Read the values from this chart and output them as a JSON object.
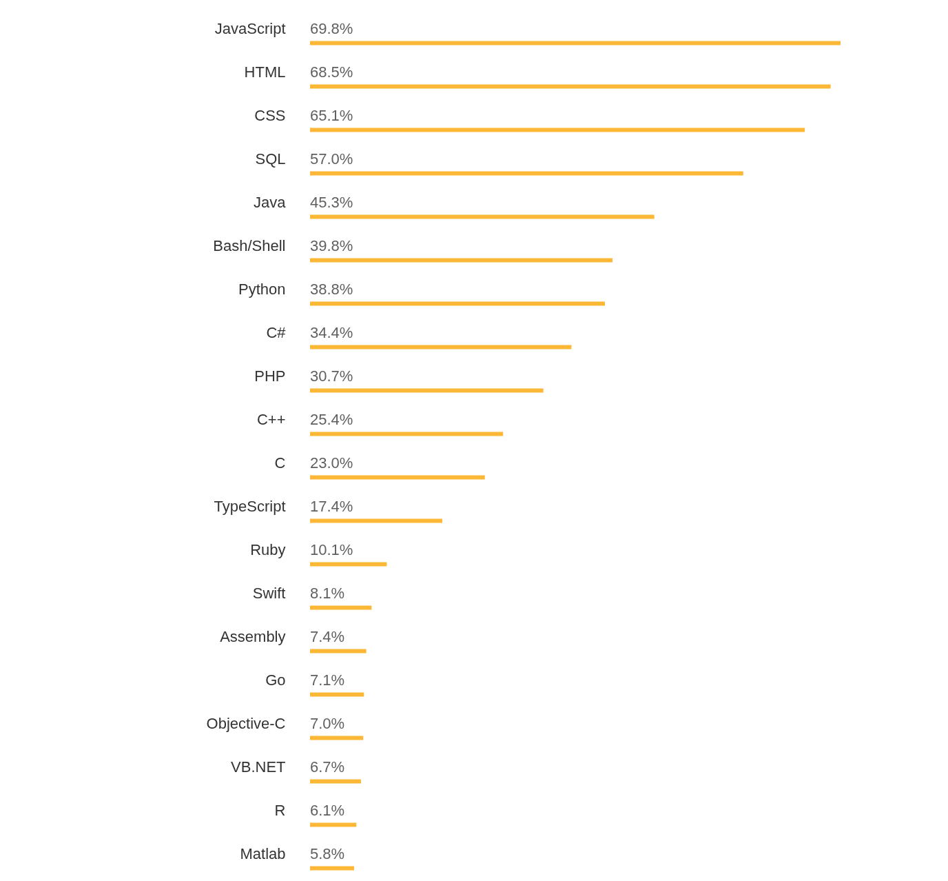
{
  "chart_data": {
    "type": "bar",
    "orientation": "horizontal",
    "color": "#fcb737",
    "categories": [
      "JavaScript",
      "HTML",
      "CSS",
      "SQL",
      "Java",
      "Bash/Shell",
      "Python",
      "C#",
      "PHP",
      "C++",
      "C",
      "TypeScript",
      "Ruby",
      "Swift",
      "Assembly",
      "Go",
      "Objective-C",
      "VB.NET",
      "R",
      "Matlab"
    ],
    "values": [
      69.8,
      68.5,
      65.1,
      57.0,
      45.3,
      39.8,
      38.8,
      34.4,
      30.7,
      25.4,
      23.0,
      17.4,
      10.1,
      8.1,
      7.4,
      7.1,
      7.0,
      6.7,
      6.1,
      5.8
    ],
    "value_labels": [
      "69.8%",
      "68.5%",
      "65.1%",
      "57.0%",
      "45.3%",
      "39.8%",
      "38.8%",
      "34.4%",
      "30.7%",
      "25.4%",
      "23.0%",
      "17.4%",
      "10.1%",
      "8.1%",
      "7.4%",
      "7.1%",
      "7.0%",
      "6.7%",
      "6.1%",
      "5.8%"
    ]
  }
}
